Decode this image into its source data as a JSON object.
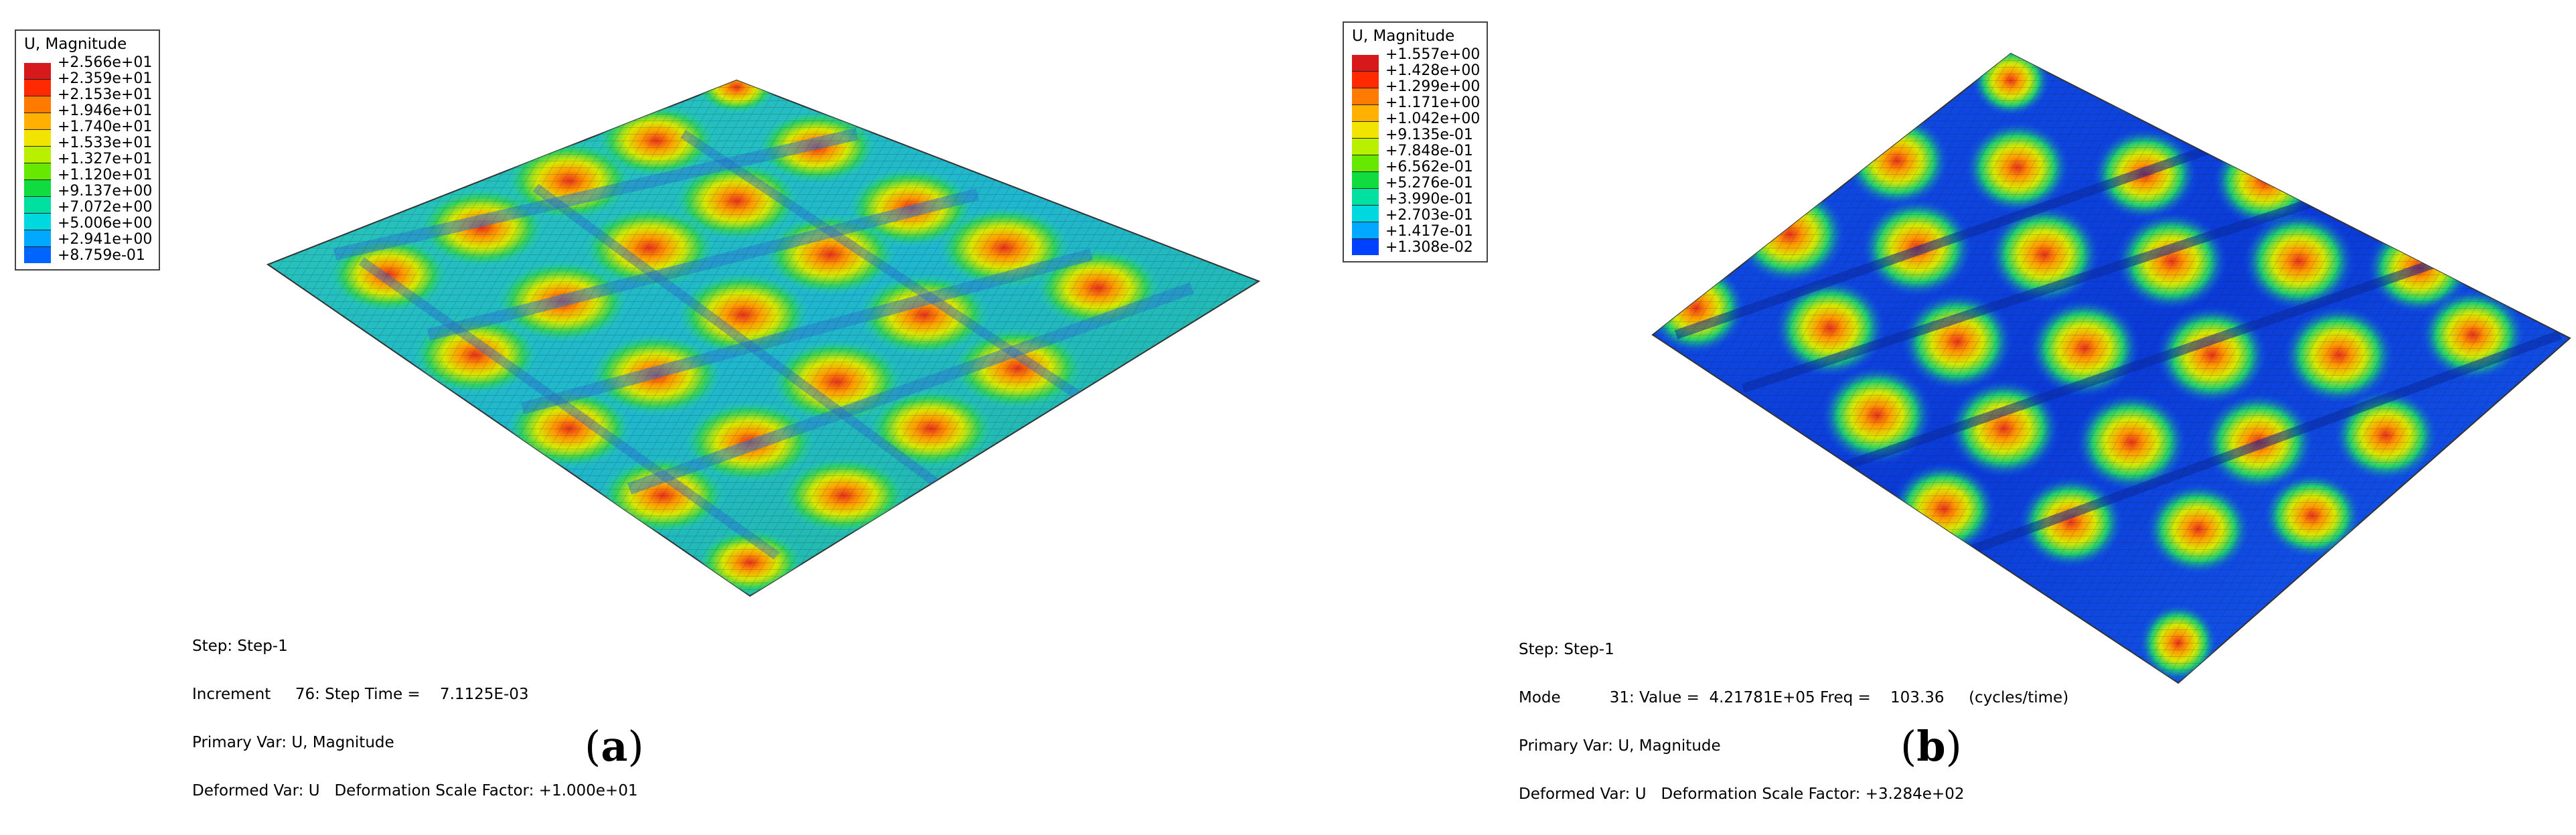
{
  "colors": {
    "contour_scale": [
      "#d7191c",
      "#ff0000",
      "#ff6a00",
      "#ffa500",
      "#ffd800",
      "#d4ff00",
      "#7cff00",
      "#22ff22",
      "#00ff80",
      "#00ffd0",
      "#00c8ff",
      "#0080ff",
      "#0030ff"
    ],
    "mesh_line": "#1b1b1b"
  },
  "panels": [
    {
      "legend": {
        "title": "U, Magnitude",
        "values": [
          "+2.566e+01",
          "+2.359e+01",
          "+2.153e+01",
          "+1.946e+01",
          "+1.740e+01",
          "+1.533e+01",
          "+1.327e+01",
          "+1.120e+01",
          "+9.137e+00",
          "+7.072e+00",
          "+5.006e+00",
          "+2.941e+00",
          "+8.759e-01"
        ]
      },
      "info": {
        "line1": "Step: Step-1",
        "line2": "Increment     76: Step Time =    7.1125E-03",
        "line3": "Primary Var: U, Magnitude",
        "line4": "Deformed Var: U   Deformation Scale Factor: +1.000e+01"
      },
      "caption": {
        "open": "(",
        "letter": "a",
        "close": ")"
      },
      "surface_icon": "deformed-waffle-plate-contour"
    },
    {
      "legend": {
        "title": "U, Magnitude",
        "values": [
          "+1.557e+00",
          "+1.428e+00",
          "+1.299e+00",
          "+1.171e+00",
          "+1.042e+00",
          "+9.135e-01",
          "+7.848e-01",
          "+6.562e-01",
          "+5.276e-01",
          "+3.990e-01",
          "+2.703e-01",
          "+1.417e-01",
          "+1.308e-02"
        ]
      },
      "info": {
        "line1": "Step: Step-1",
        "line2": "Mode          31: Value =  4.21781E+05 Freq =    103.36     (cycles/time)",
        "line3": "Primary Var: U, Magnitude",
        "line4": "Deformed Var: U   Deformation Scale Factor: +3.284e+02"
      },
      "caption": {
        "open": "(",
        "letter": "b",
        "close": ")"
      },
      "surface_icon": "mode-shape-plate-contour"
    }
  ]
}
